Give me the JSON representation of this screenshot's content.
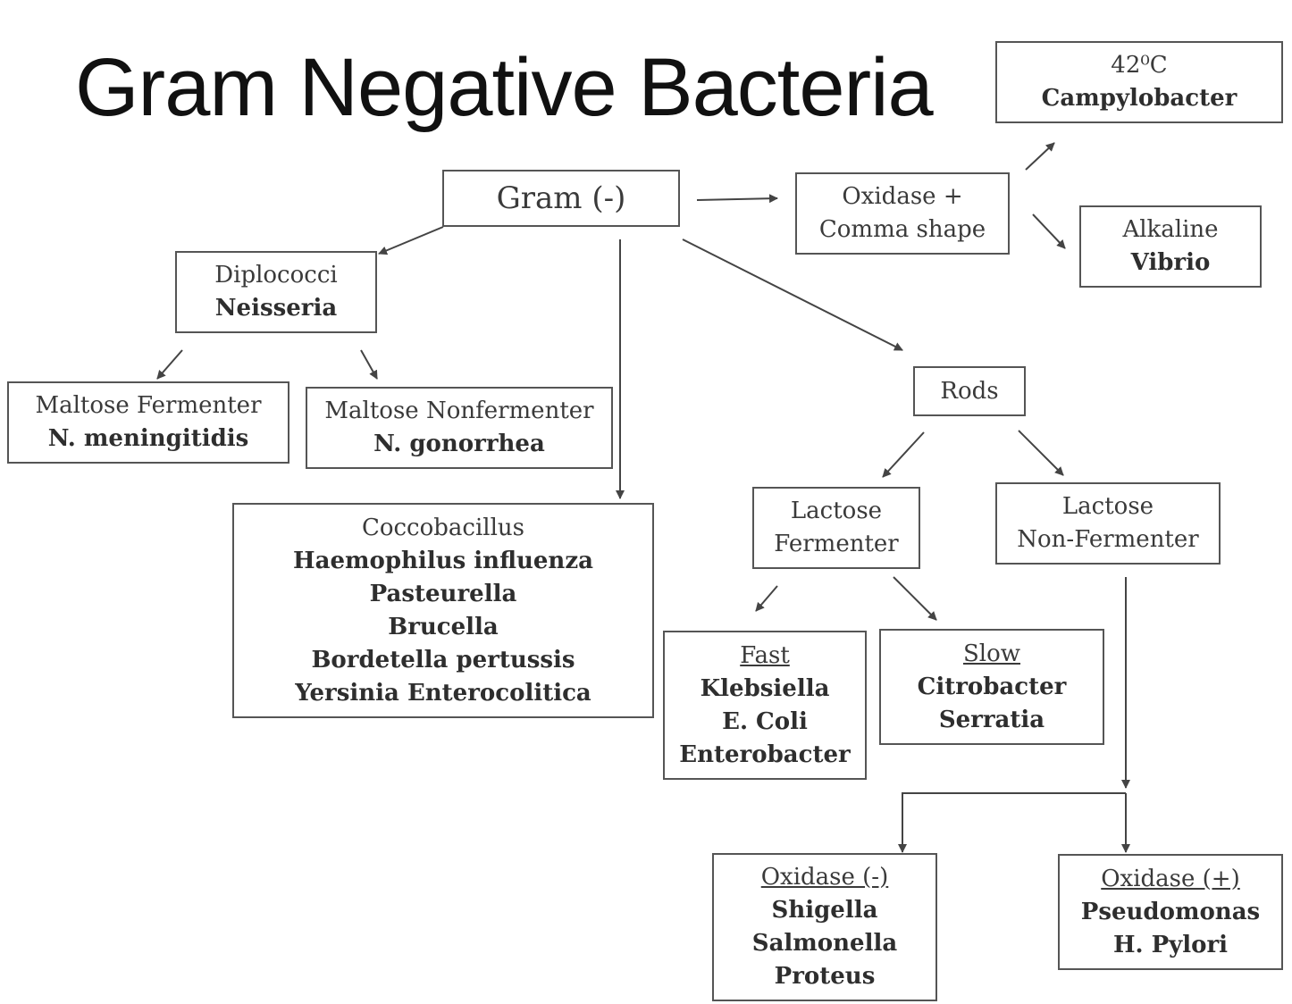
{
  "title": "Gram Negative Bacteria",
  "nodes": {
    "gram_neg": {
      "label": "Gram (-)"
    },
    "campylobacter": {
      "line1": "42⁰C",
      "line2": "Campylobacter"
    },
    "oxidase_comma": {
      "line1": "Oxidase +",
      "line2": "Comma shape"
    },
    "vibrio": {
      "line1": "Alkaline",
      "line2": "Vibrio"
    },
    "diplococci": {
      "line1": "Diplococci",
      "line2": "Neisseria"
    },
    "maltose_fermenter": {
      "line1": "Maltose Fermenter",
      "line2": "N. meningitidis"
    },
    "maltose_nonfermenter": {
      "line1": "Maltose Nonfermenter",
      "line2": "N. gonorrhea"
    },
    "coccobacillus": {
      "heading": "Coccobacillus",
      "items": [
        "Haemophilus influenza",
        "Pasteurella",
        "Brucella",
        "Bordetella pertussis",
        "Yersinia Enterocolitica"
      ]
    },
    "rods": {
      "label": "Rods"
    },
    "lactose_fermenter": {
      "line1": "Lactose",
      "line2": "Fermenter"
    },
    "lactose_nonfermenter": {
      "line1": "Lactose",
      "line2": "Non-Fermenter"
    },
    "fast": {
      "heading": "Fast",
      "items": [
        "Klebsiella",
        "E. Coli",
        "Enterobacter"
      ]
    },
    "slow": {
      "heading": "Slow",
      "items": [
        "Citrobacter",
        "Serratia"
      ]
    },
    "oxidase_neg": {
      "heading": "Oxidase (-)",
      "items": [
        "Shigella",
        "Salmonella",
        "Proteus"
      ]
    },
    "oxidase_pos": {
      "heading": "Oxidase (+)",
      "items": [
        "Pseudomonas",
        "H. Pylori"
      ]
    }
  }
}
